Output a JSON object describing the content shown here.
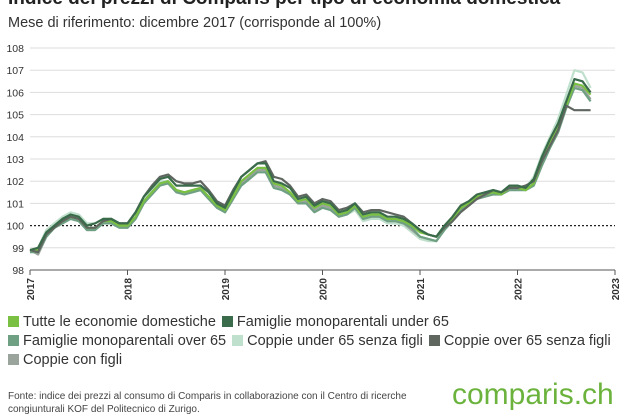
{
  "header": {
    "title": "Indice dei prezzi di Comparis per tipo di economia domestica",
    "subtitle": "Mese di riferimento: dicembre 2017 (corrisponde al 100%)"
  },
  "legend": {
    "items": [
      {
        "label": "Tutte le economie domestiche",
        "color": "#7ac143"
      },
      {
        "label": "Famiglie monoparentali under 65",
        "color": "#3a6b4a"
      },
      {
        "label": "Famiglie monoparentali over 65",
        "color": "#6fa083"
      },
      {
        "label": "Coppie under 65 senza figli",
        "color": "#bfe0cc"
      },
      {
        "label": "Coppie over 65 senza figli",
        "color": "#5f6660"
      },
      {
        "label": "Coppie con figli",
        "color": "#9aa39c"
      }
    ]
  },
  "footer": {
    "source": "Fonte: indice dei prezzi al consumo di Comparis in collaborazione con il Centro di ricerche congiunturali KOF del Politecnico di Zurigo.",
    "logo": "comparis.ch"
  },
  "chart_data": {
    "type": "line",
    "title": "Indice dei prezzi di Comparis per tipo di economia domestica",
    "subtitle": "Mese di riferimento: dicembre 2017 (corrisponde al 100%)",
    "xlabel": "",
    "ylabel": "",
    "x_start": "2017-01",
    "x_ticks": [
      "2017",
      "2018",
      "2019",
      "2020",
      "2021",
      "2022",
      "2023"
    ],
    "y_ticks": [
      98,
      99,
      100,
      101,
      102,
      103,
      104,
      105,
      106,
      107,
      108
    ],
    "ylim": [
      98,
      108
    ],
    "reference_line": 100,
    "grid": "horizontal",
    "legend_position": "bottom",
    "series": [
      {
        "name": "Tutte le economie domestiche",
        "color": "#7ac143",
        "values": [
          98.9,
          98.9,
          99.6,
          99.9,
          100.2,
          100.4,
          100.3,
          99.9,
          99.9,
          100.2,
          100.2,
          100.0,
          100.0,
          100.4,
          101.1,
          101.5,
          101.9,
          102.0,
          101.6,
          101.5,
          101.6,
          101.7,
          101.3,
          100.9,
          100.7,
          101.3,
          102.0,
          102.3,
          102.6,
          102.6,
          101.9,
          101.8,
          101.5,
          101.1,
          101.2,
          100.8,
          101.0,
          100.9,
          100.5,
          100.6,
          100.9,
          100.4,
          100.5,
          100.5,
          100.3,
          100.3,
          100.2,
          100.0,
          99.7,
          99.6,
          99.5,
          99.9,
          100.3,
          100.8,
          101.0,
          101.3,
          101.4,
          101.5,
          101.4,
          101.7,
          101.7,
          101.6,
          101.9,
          102.9,
          103.7,
          104.4,
          105.4,
          106.4,
          106.3,
          105.9
        ]
      },
      {
        "name": "Famiglie monoparentali under 65",
        "color": "#3a6b4a",
        "values": [
          98.9,
          99.0,
          99.7,
          100.0,
          100.3,
          100.5,
          100.4,
          100.0,
          100.1,
          100.3,
          100.3,
          100.1,
          100.1,
          100.6,
          101.3,
          101.7,
          102.1,
          102.2,
          101.8,
          101.8,
          101.8,
          101.8,
          101.5,
          101.0,
          100.8,
          101.5,
          102.2,
          102.5,
          102.8,
          102.8,
          102.0,
          101.9,
          101.7,
          101.2,
          101.3,
          100.9,
          101.1,
          101.0,
          100.6,
          100.7,
          101.0,
          100.5,
          100.6,
          100.6,
          100.4,
          100.4,
          100.3,
          100.1,
          99.8,
          99.6,
          99.5,
          100.0,
          100.4,
          100.9,
          101.1,
          101.4,
          101.5,
          101.6,
          101.5,
          101.8,
          101.8,
          101.7,
          102.1,
          103.1,
          103.9,
          104.6,
          105.6,
          106.6,
          106.5,
          106.0
        ]
      },
      {
        "name": "Famiglie monoparentali over 65",
        "color": "#6fa083",
        "values": [
          98.8,
          98.8,
          99.5,
          99.9,
          100.1,
          100.3,
          100.2,
          99.8,
          99.8,
          100.1,
          100.1,
          99.9,
          99.9,
          100.3,
          101.0,
          101.4,
          101.8,
          101.9,
          101.5,
          101.4,
          101.5,
          101.6,
          101.2,
          100.8,
          100.6,
          101.2,
          101.8,
          102.1,
          102.4,
          102.4,
          101.7,
          101.6,
          101.4,
          101.0,
          101.0,
          100.6,
          100.8,
          100.7,
          100.4,
          100.5,
          100.8,
          100.3,
          100.4,
          100.4,
          100.2,
          100.2,
          100.1,
          99.9,
          99.5,
          99.4,
          99.3,
          99.8,
          100.2,
          100.7,
          101.0,
          101.2,
          101.3,
          101.4,
          101.4,
          101.6,
          101.6,
          101.6,
          101.8,
          102.7,
          103.5,
          104.2,
          105.3,
          106.2,
          106.1,
          105.6
        ]
      },
      {
        "name": "Coppie under 65 senza figli",
        "color": "#bfe0cc",
        "values": [
          98.9,
          99.0,
          99.8,
          100.1,
          100.4,
          100.6,
          100.5,
          100.1,
          100.1,
          100.3,
          100.3,
          100.1,
          100.0,
          100.4,
          101.1,
          101.6,
          102.0,
          102.0,
          101.6,
          101.5,
          101.5,
          101.6,
          101.3,
          100.9,
          100.6,
          101.2,
          101.9,
          102.2,
          102.5,
          102.5,
          101.8,
          101.7,
          101.5,
          101.0,
          101.1,
          100.7,
          100.9,
          100.8,
          100.4,
          100.5,
          100.7,
          100.2,
          100.3,
          100.3,
          100.1,
          100.1,
          100.0,
          99.7,
          99.4,
          99.3,
          99.3,
          99.8,
          100.3,
          100.8,
          101.0,
          101.3,
          101.4,
          101.5,
          101.4,
          101.7,
          101.7,
          101.7,
          102.2,
          103.2,
          104.0,
          104.8,
          105.9,
          107.0,
          106.9,
          106.2
        ]
      },
      {
        "name": "Coppie over 65 senza figli",
        "color": "#5f6660",
        "values": [
          98.9,
          98.8,
          99.6,
          99.9,
          100.2,
          100.4,
          100.3,
          99.9,
          99.9,
          100.2,
          100.3,
          100.1,
          100.1,
          100.6,
          101.3,
          101.8,
          102.2,
          102.3,
          102.0,
          101.9,
          101.9,
          102.0,
          101.6,
          101.1,
          100.9,
          101.6,
          102.2,
          102.5,
          102.8,
          102.9,
          102.2,
          102.1,
          101.8,
          101.3,
          101.4,
          101.0,
          101.2,
          101.1,
          100.7,
          100.8,
          101.0,
          100.6,
          100.7,
          100.7,
          100.6,
          100.5,
          100.4,
          100.1,
          99.8,
          99.6,
          99.5,
          99.9,
          100.2,
          100.6,
          100.9,
          101.2,
          101.4,
          101.6,
          101.5,
          101.7,
          101.7,
          101.8,
          102.0,
          102.9,
          103.6,
          104.3,
          105.4,
          105.2,
          105.2,
          105.2
        ]
      },
      {
        "name": "Coppie con figli",
        "color": "#9aa39c",
        "values": [
          98.9,
          98.7,
          99.5,
          99.9,
          100.2,
          100.4,
          100.3,
          99.8,
          99.8,
          100.2,
          100.2,
          100.0,
          99.9,
          100.3,
          101.0,
          101.5,
          101.9,
          102.0,
          101.6,
          101.5,
          101.6,
          101.7,
          101.3,
          100.9,
          100.6,
          101.2,
          101.9,
          102.2,
          102.5,
          102.5,
          101.8,
          101.7,
          101.4,
          101.0,
          101.1,
          100.7,
          100.9,
          100.8,
          100.4,
          100.5,
          100.8,
          100.3,
          100.4,
          100.4,
          100.2,
          100.2,
          100.1,
          99.8,
          99.5,
          99.4,
          99.3,
          99.8,
          100.3,
          100.8,
          101.0,
          101.3,
          101.4,
          101.5,
          101.4,
          101.7,
          101.7,
          101.6,
          101.9,
          102.9,
          103.7,
          104.5,
          105.5,
          106.3,
          106.2,
          105.7
        ]
      }
    ]
  }
}
